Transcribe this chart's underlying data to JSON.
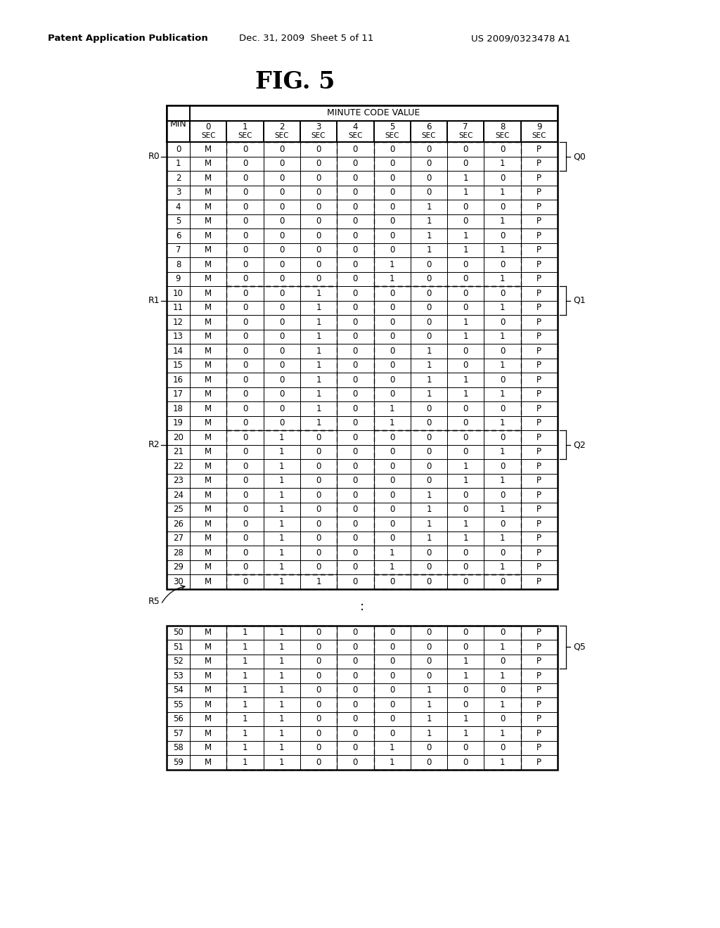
{
  "title": "FIG. 5",
  "header_line1": "Patent Application Publication",
  "header_line2": "Dec. 31, 2009  Sheet 5 of 11",
  "header_line3": "US 2009/0323478 A1",
  "table_header": "MINUTE CODE VALUE",
  "rows_top": [
    [
      0,
      "M",
      0,
      0,
      0,
      0,
      0,
      0,
      0,
      0,
      "P"
    ],
    [
      1,
      "M",
      0,
      0,
      0,
      0,
      0,
      0,
      0,
      1,
      "P"
    ],
    [
      2,
      "M",
      0,
      0,
      0,
      0,
      0,
      0,
      1,
      0,
      "P"
    ],
    [
      3,
      "M",
      0,
      0,
      0,
      0,
      0,
      0,
      1,
      1,
      "P"
    ],
    [
      4,
      "M",
      0,
      0,
      0,
      0,
      0,
      1,
      0,
      0,
      "P"
    ],
    [
      5,
      "M",
      0,
      0,
      0,
      0,
      0,
      1,
      0,
      1,
      "P"
    ],
    [
      6,
      "M",
      0,
      0,
      0,
      0,
      0,
      1,
      1,
      0,
      "P"
    ],
    [
      7,
      "M",
      0,
      0,
      0,
      0,
      0,
      1,
      1,
      1,
      "P"
    ],
    [
      8,
      "M",
      0,
      0,
      0,
      0,
      1,
      0,
      0,
      0,
      "P"
    ],
    [
      9,
      "M",
      0,
      0,
      0,
      0,
      1,
      0,
      0,
      1,
      "P"
    ],
    [
      10,
      "M",
      0,
      0,
      1,
      0,
      0,
      0,
      0,
      0,
      "P"
    ],
    [
      11,
      "M",
      0,
      0,
      1,
      0,
      0,
      0,
      0,
      1,
      "P"
    ],
    [
      12,
      "M",
      0,
      0,
      1,
      0,
      0,
      0,
      1,
      0,
      "P"
    ],
    [
      13,
      "M",
      0,
      0,
      1,
      0,
      0,
      0,
      1,
      1,
      "P"
    ],
    [
      14,
      "M",
      0,
      0,
      1,
      0,
      0,
      1,
      0,
      0,
      "P"
    ],
    [
      15,
      "M",
      0,
      0,
      1,
      0,
      0,
      1,
      0,
      1,
      "P"
    ],
    [
      16,
      "M",
      0,
      0,
      1,
      0,
      0,
      1,
      1,
      0,
      "P"
    ],
    [
      17,
      "M",
      0,
      0,
      1,
      0,
      0,
      1,
      1,
      1,
      "P"
    ],
    [
      18,
      "M",
      0,
      0,
      1,
      0,
      1,
      0,
      0,
      0,
      "P"
    ],
    [
      19,
      "M",
      0,
      0,
      1,
      0,
      1,
      0,
      0,
      1,
      "P"
    ],
    [
      20,
      "M",
      0,
      1,
      0,
      0,
      0,
      0,
      0,
      0,
      "P"
    ],
    [
      21,
      "M",
      0,
      1,
      0,
      0,
      0,
      0,
      0,
      1,
      "P"
    ],
    [
      22,
      "M",
      0,
      1,
      0,
      0,
      0,
      0,
      1,
      0,
      "P"
    ],
    [
      23,
      "M",
      0,
      1,
      0,
      0,
      0,
      0,
      1,
      1,
      "P"
    ],
    [
      24,
      "M",
      0,
      1,
      0,
      0,
      0,
      1,
      0,
      0,
      "P"
    ],
    [
      25,
      "M",
      0,
      1,
      0,
      0,
      0,
      1,
      0,
      1,
      "P"
    ],
    [
      26,
      "M",
      0,
      1,
      0,
      0,
      0,
      1,
      1,
      0,
      "P"
    ],
    [
      27,
      "M",
      0,
      1,
      0,
      0,
      0,
      1,
      1,
      1,
      "P"
    ],
    [
      28,
      "M",
      0,
      1,
      0,
      0,
      1,
      0,
      0,
      0,
      "P"
    ],
    [
      29,
      "M",
      0,
      1,
      0,
      0,
      1,
      0,
      0,
      1,
      "P"
    ],
    [
      30,
      "M",
      0,
      1,
      1,
      0,
      0,
      0,
      0,
      0,
      "P"
    ]
  ],
  "rows_bottom": [
    [
      50,
      "M",
      1,
      1,
      0,
      0,
      0,
      0,
      0,
      0,
      "P"
    ],
    [
      51,
      "M",
      1,
      1,
      0,
      0,
      0,
      0,
      0,
      1,
      "P"
    ],
    [
      52,
      "M",
      1,
      1,
      0,
      0,
      0,
      0,
      1,
      0,
      "P"
    ],
    [
      53,
      "M",
      1,
      1,
      0,
      0,
      0,
      0,
      1,
      1,
      "P"
    ],
    [
      54,
      "M",
      1,
      1,
      0,
      0,
      0,
      1,
      0,
      0,
      "P"
    ],
    [
      55,
      "M",
      1,
      1,
      0,
      0,
      0,
      1,
      0,
      1,
      "P"
    ],
    [
      56,
      "M",
      1,
      1,
      0,
      0,
      0,
      1,
      1,
      0,
      "P"
    ],
    [
      57,
      "M",
      1,
      1,
      0,
      0,
      0,
      1,
      1,
      1,
      "P"
    ],
    [
      58,
      "M",
      1,
      1,
      0,
      0,
      1,
      0,
      0,
      0,
      "P"
    ],
    [
      59,
      "M",
      1,
      1,
      0,
      0,
      1,
      0,
      0,
      1,
      "P"
    ]
  ],
  "col_sec_labels": [
    "0",
    "1",
    "2",
    "3",
    "4",
    "5",
    "6",
    "7",
    "8",
    "9"
  ],
  "background_color": "#ffffff",
  "line_color": "#000000"
}
